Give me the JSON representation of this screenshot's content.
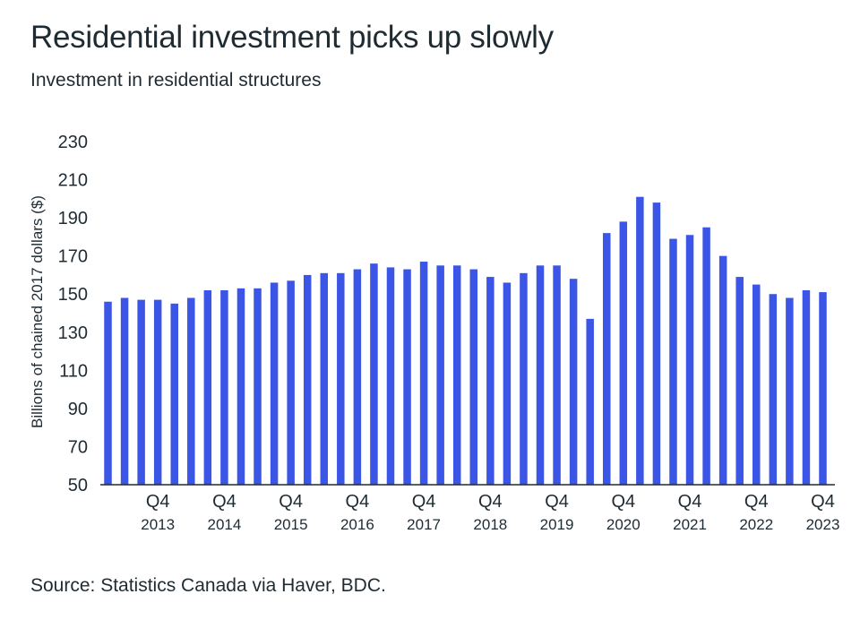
{
  "chart_data": {
    "type": "bar",
    "title": "Residential investment picks up slowly",
    "subtitle": "Investment in residential structures",
    "ylabel": "Billions of chained 2017 dollars ($)",
    "xlabel": "",
    "source": "Source: Statistics Canada via Haver, BDC.",
    "ylim": [
      50,
      230
    ],
    "yticks": [
      50,
      70,
      90,
      110,
      130,
      150,
      170,
      190,
      210,
      230
    ],
    "grid": false,
    "bar_color": "#3b55e6",
    "categories": [
      "2013Q1",
      "2013Q2",
      "2013Q3",
      "2013Q4",
      "2014Q1",
      "2014Q2",
      "2014Q3",
      "2014Q4",
      "2015Q1",
      "2015Q2",
      "2015Q3",
      "2015Q4",
      "2016Q1",
      "2016Q2",
      "2016Q3",
      "2016Q4",
      "2017Q1",
      "2017Q2",
      "2017Q3",
      "2017Q4",
      "2018Q1",
      "2018Q2",
      "2018Q3",
      "2018Q4",
      "2019Q1",
      "2019Q2",
      "2019Q3",
      "2019Q4",
      "2020Q1",
      "2020Q2",
      "2020Q3",
      "2020Q4",
      "2021Q1",
      "2021Q2",
      "2021Q3",
      "2021Q4",
      "2022Q1",
      "2022Q2",
      "2022Q3",
      "2022Q4",
      "2023Q1",
      "2023Q2",
      "2023Q3",
      "2023Q4"
    ],
    "values": [
      146,
      148,
      147,
      147,
      145,
      148,
      152,
      152,
      153,
      153,
      156,
      157,
      160,
      161,
      161,
      163,
      166,
      164,
      163,
      167,
      165,
      165,
      163,
      159,
      156,
      161,
      165,
      165,
      158,
      137,
      182,
      188,
      201,
      198,
      179,
      181,
      185,
      170,
      159,
      155,
      150,
      148,
      152,
      151
    ],
    "x_tick_labels": [
      {
        "category": "2013Q4",
        "quarter": "Q4",
        "year": "2013"
      },
      {
        "category": "2014Q4",
        "quarter": "Q4",
        "year": "2014"
      },
      {
        "category": "2015Q4",
        "quarter": "Q4",
        "year": "2015"
      },
      {
        "category": "2016Q4",
        "quarter": "Q4",
        "year": "2016"
      },
      {
        "category": "2017Q4",
        "quarter": "Q4",
        "year": "2017"
      },
      {
        "category": "2018Q4",
        "quarter": "Q4",
        "year": "2018"
      },
      {
        "category": "2019Q4",
        "quarter": "Q4",
        "year": "2019"
      },
      {
        "category": "2020Q4",
        "quarter": "Q4",
        "year": "2020"
      },
      {
        "category": "2021Q4",
        "quarter": "Q4",
        "year": "2021"
      },
      {
        "category": "2022Q4",
        "quarter": "Q4",
        "year": "2022"
      },
      {
        "category": "2023Q4",
        "quarter": "Q4",
        "year": "2023"
      }
    ]
  }
}
